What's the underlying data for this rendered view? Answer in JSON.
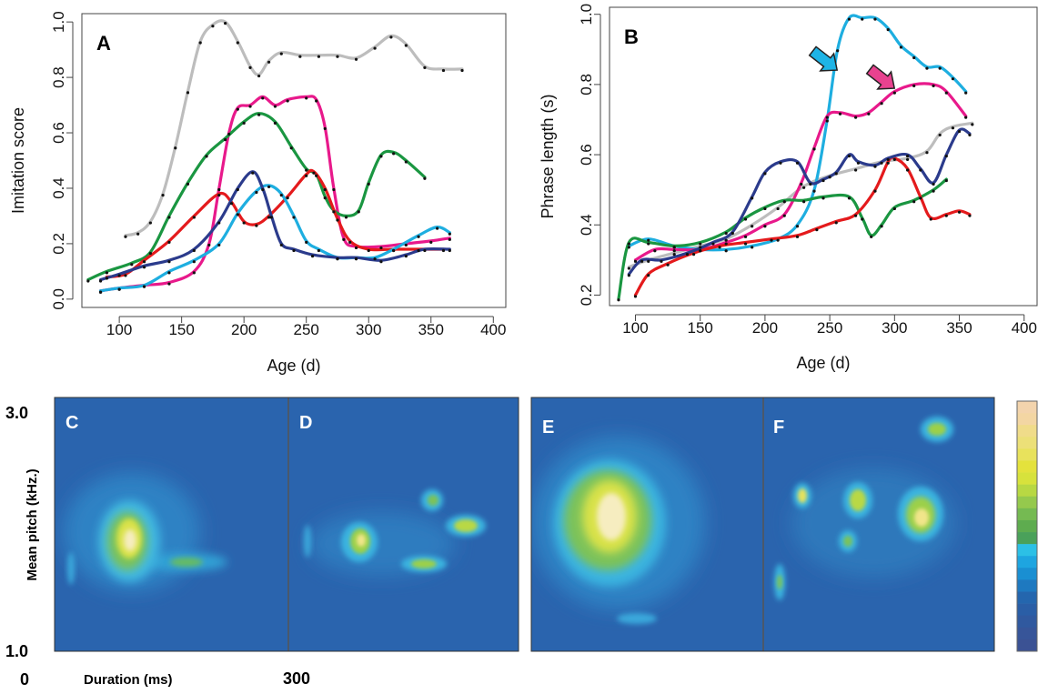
{
  "chart_data": [
    {
      "panel": "A",
      "type": "line",
      "xlabel": "Age (d)",
      "ylabel": "Imitation score",
      "xlim": [
        70,
        410
      ],
      "ylim": [
        -0.03,
        1.03
      ],
      "x_ticks": [
        100,
        150,
        200,
        250,
        300,
        350,
        400
      ],
      "y_ticks": [
        0.0,
        0.2,
        0.4,
        0.6,
        0.8,
        1.0
      ],
      "y_tick_labels": [
        "0.0",
        "0.2",
        "0.4",
        "0.6",
        "0.8",
        "1.0"
      ],
      "series": [
        {
          "color": "#bdbdbd",
          "points": [
            [
              105,
              0.23
            ],
            [
              115,
              0.24
            ],
            [
              125,
              0.28
            ],
            [
              135,
              0.38
            ],
            [
              145,
              0.55
            ],
            [
              155,
              0.75
            ],
            [
              165,
              0.93
            ],
            [
              175,
              0.99
            ],
            [
              185,
              1.0
            ],
            [
              195,
              0.93
            ],
            [
              205,
              0.84
            ],
            [
              212,
              0.81
            ],
            [
              220,
              0.86
            ],
            [
              230,
              0.89
            ],
            [
              245,
              0.88
            ],
            [
              260,
              0.88
            ],
            [
              275,
              0.88
            ],
            [
              290,
              0.87
            ],
            [
              305,
              0.91
            ],
            [
              318,
              0.95
            ],
            [
              330,
              0.92
            ],
            [
              345,
              0.84
            ],
            [
              360,
              0.83
            ],
            [
              375,
              0.83
            ]
          ]
        },
        {
          "color": "#e8198b",
          "points": [
            [
              85,
              0.03
            ],
            [
              100,
              0.04
            ],
            [
              120,
              0.05
            ],
            [
              140,
              0.06
            ],
            [
              160,
              0.1
            ],
            [
              172,
              0.2
            ],
            [
              180,
              0.4
            ],
            [
              188,
              0.6
            ],
            [
              195,
              0.69
            ],
            [
              205,
              0.7
            ],
            [
              215,
              0.73
            ],
            [
              225,
              0.7
            ],
            [
              235,
              0.72
            ],
            [
              250,
              0.73
            ],
            [
              258,
              0.72
            ],
            [
              265,
              0.62
            ],
            [
              272,
              0.4
            ],
            [
              280,
              0.22
            ],
            [
              290,
              0.19
            ],
            [
              310,
              0.19
            ],
            [
              330,
              0.2
            ],
            [
              350,
              0.21
            ],
            [
              365,
              0.22
            ]
          ]
        },
        {
          "color": "#1a9641",
          "points": [
            [
              75,
              0.07
            ],
            [
              90,
              0.1
            ],
            [
              110,
              0.13
            ],
            [
              125,
              0.17
            ],
            [
              140,
              0.3
            ],
            [
              155,
              0.42
            ],
            [
              170,
              0.52
            ],
            [
              185,
              0.58
            ],
            [
              200,
              0.64
            ],
            [
              212,
              0.67
            ],
            [
              225,
              0.64
            ],
            [
              238,
              0.55
            ],
            [
              250,
              0.47
            ],
            [
              258,
              0.45
            ],
            [
              265,
              0.37
            ],
            [
              272,
              0.32
            ],
            [
              282,
              0.3
            ],
            [
              292,
              0.32
            ],
            [
              300,
              0.42
            ],
            [
              310,
              0.52
            ],
            [
              320,
              0.53
            ],
            [
              330,
              0.5
            ],
            [
              345,
              0.44
            ]
          ]
        },
        {
          "color": "#e41a1c",
          "points": [
            [
              90,
              0.08
            ],
            [
              105,
              0.09
            ],
            [
              120,
              0.14
            ],
            [
              140,
              0.21
            ],
            [
              160,
              0.3
            ],
            [
              180,
              0.38
            ],
            [
              190,
              0.35
            ],
            [
              200,
              0.28
            ],
            [
              210,
              0.27
            ],
            [
              220,
              0.3
            ],
            [
              235,
              0.37
            ],
            [
              250,
              0.45
            ],
            [
              256,
              0.46
            ],
            [
              265,
              0.4
            ],
            [
              275,
              0.29
            ],
            [
              285,
              0.21
            ],
            [
              300,
              0.18
            ],
            [
              320,
              0.18
            ],
            [
              340,
              0.18
            ],
            [
              360,
              0.18
            ]
          ]
        },
        {
          "color": "#1eaee0",
          "points": [
            [
              85,
              0.03
            ],
            [
              100,
              0.04
            ],
            [
              120,
              0.05
            ],
            [
              140,
              0.1
            ],
            [
              160,
              0.14
            ],
            [
              180,
              0.2
            ],
            [
              195,
              0.31
            ],
            [
              210,
              0.39
            ],
            [
              220,
              0.41
            ],
            [
              230,
              0.38
            ],
            [
              240,
              0.3
            ],
            [
              250,
              0.21
            ],
            [
              260,
              0.18
            ],
            [
              275,
              0.15
            ],
            [
              290,
              0.15
            ],
            [
              305,
              0.15
            ],
            [
              320,
              0.18
            ],
            [
              340,
              0.23
            ],
            [
              355,
              0.26
            ],
            [
              365,
              0.24
            ]
          ]
        },
        {
          "color": "#2b3b8c",
          "points": [
            [
              85,
              0.07
            ],
            [
              100,
              0.09
            ],
            [
              120,
              0.12
            ],
            [
              140,
              0.14
            ],
            [
              160,
              0.18
            ],
            [
              180,
              0.28
            ],
            [
              195,
              0.4
            ],
            [
              207,
              0.46
            ],
            [
              215,
              0.4
            ],
            [
              222,
              0.3
            ],
            [
              230,
              0.2
            ],
            [
              240,
              0.18
            ],
            [
              255,
              0.16
            ],
            [
              275,
              0.15
            ],
            [
              290,
              0.15
            ],
            [
              310,
              0.14
            ],
            [
              330,
              0.16
            ],
            [
              345,
              0.18
            ],
            [
              365,
              0.18
            ]
          ]
        }
      ]
    },
    {
      "panel": "B",
      "type": "line",
      "xlabel": "Age (d)",
      "ylabel": "Phrase length (s)",
      "xlim": [
        80,
        410
      ],
      "ylim": [
        0.17,
        1.02
      ],
      "x_ticks": [
        100,
        150,
        200,
        250,
        300,
        350,
        400
      ],
      "y_ticks": [
        0.2,
        0.4,
        0.6,
        0.8,
        1.0
      ],
      "y_tick_labels": [
        "0.2",
        "0.4",
        "0.6",
        "0.8",
        "1.0"
      ],
      "series": [
        {
          "color": "#bdbdbd",
          "points": [
            [
              95,
              0.28
            ],
            [
              110,
              0.3
            ],
            [
              130,
              0.32
            ],
            [
              150,
              0.34
            ],
            [
              170,
              0.36
            ],
            [
              190,
              0.4
            ],
            [
              210,
              0.45
            ],
            [
              230,
              0.51
            ],
            [
              250,
              0.54
            ],
            [
              270,
              0.56
            ],
            [
              290,
              0.58
            ],
            [
              310,
              0.59
            ],
            [
              325,
              0.61
            ],
            [
              335,
              0.66
            ],
            [
              345,
              0.68
            ],
            [
              360,
              0.69
            ]
          ]
        },
        {
          "color": "#1eaee0",
          "points": [
            [
              95,
              0.34
            ],
            [
              110,
              0.36
            ],
            [
              130,
              0.34
            ],
            [
              150,
              0.33
            ],
            [
              170,
              0.33
            ],
            [
              190,
              0.34
            ],
            [
              210,
              0.36
            ],
            [
              225,
              0.4
            ],
            [
              238,
              0.5
            ],
            [
              248,
              0.7
            ],
            [
              256,
              0.9
            ],
            [
              265,
              0.99
            ],
            [
              275,
              0.99
            ],
            [
              285,
              0.99
            ],
            [
              295,
              0.96
            ],
            [
              305,
              0.91
            ],
            [
              315,
              0.88
            ],
            [
              325,
              0.85
            ],
            [
              335,
              0.85
            ],
            [
              345,
              0.82
            ],
            [
              355,
              0.78
            ]
          ]
        },
        {
          "color": "#e8198b",
          "points": [
            [
              100,
              0.3
            ],
            [
              115,
              0.33
            ],
            [
              130,
              0.33
            ],
            [
              150,
              0.33
            ],
            [
              170,
              0.35
            ],
            [
              185,
              0.37
            ],
            [
              200,
              0.4
            ],
            [
              215,
              0.43
            ],
            [
              228,
              0.52
            ],
            [
              238,
              0.62
            ],
            [
              248,
              0.71
            ],
            [
              258,
              0.72
            ],
            [
              270,
              0.71
            ],
            [
              280,
              0.72
            ],
            [
              290,
              0.75
            ],
            [
              300,
              0.78
            ],
            [
              315,
              0.8
            ],
            [
              330,
              0.8
            ],
            [
              340,
              0.78
            ],
            [
              355,
              0.71
            ]
          ]
        },
        {
          "color": "#1a9641",
          "points": [
            [
              87,
              0.19
            ],
            [
              95,
              0.35
            ],
            [
              110,
              0.35
            ],
            [
              130,
              0.34
            ],
            [
              150,
              0.35
            ],
            [
              170,
              0.38
            ],
            [
              185,
              0.42
            ],
            [
              200,
              0.45
            ],
            [
              215,
              0.47
            ],
            [
              230,
              0.47
            ],
            [
              245,
              0.48
            ],
            [
              265,
              0.48
            ],
            [
              275,
              0.42
            ],
            [
              282,
              0.37
            ],
            [
              290,
              0.4
            ],
            [
              300,
              0.45
            ],
            [
              315,
              0.47
            ],
            [
              330,
              0.5
            ],
            [
              340,
              0.53
            ]
          ]
        },
        {
          "color": "#e41a1c",
          "points": [
            [
              100,
              0.2
            ],
            [
              110,
              0.26
            ],
            [
              125,
              0.29
            ],
            [
              145,
              0.32
            ],
            [
              165,
              0.34
            ],
            [
              185,
              0.35
            ],
            [
              205,
              0.36
            ],
            [
              225,
              0.37
            ],
            [
              240,
              0.39
            ],
            [
              255,
              0.41
            ],
            [
              270,
              0.43
            ],
            [
              285,
              0.5
            ],
            [
              295,
              0.58
            ],
            [
              300,
              0.59
            ],
            [
              310,
              0.56
            ],
            [
              320,
              0.48
            ],
            [
              328,
              0.42
            ],
            [
              340,
              0.43
            ],
            [
              350,
              0.44
            ],
            [
              358,
              0.43
            ]
          ]
        },
        {
          "color": "#2b3b8c",
          "points": [
            [
              95,
              0.26
            ],
            [
              105,
              0.3
            ],
            [
              120,
              0.3
            ],
            [
              140,
              0.32
            ],
            [
              160,
              0.35
            ],
            [
              175,
              0.38
            ],
            [
              190,
              0.48
            ],
            [
              200,
              0.55
            ],
            [
              212,
              0.58
            ],
            [
              225,
              0.58
            ],
            [
              235,
              0.52
            ],
            [
              245,
              0.53
            ],
            [
              255,
              0.55
            ],
            [
              265,
              0.6
            ],
            [
              272,
              0.58
            ],
            [
              285,
              0.57
            ],
            [
              295,
              0.59
            ],
            [
              310,
              0.6
            ],
            [
              320,
              0.56
            ],
            [
              330,
              0.52
            ],
            [
              340,
              0.6
            ],
            [
              350,
              0.67
            ],
            [
              358,
              0.66
            ]
          ]
        }
      ]
    }
  ],
  "panels": {
    "a_label": "A",
    "b_label": "B",
    "c_label": "C",
    "d_label": "D",
    "e_label": "E",
    "f_label": "F"
  },
  "spectrograms": {
    "ylabel": "Mean pitch (kHz.)",
    "y_top": "3.0",
    "y_bottom": "1.0",
    "x_start": "0",
    "x_label": "Duration (ms)",
    "x_end": "300",
    "background_color": "#2a64ae"
  },
  "colorbar": {
    "colors": [
      "#f3d4ad",
      "#f3d6a3",
      "#f0dc8a",
      "#ece078",
      "#e8e25c",
      "#e4e23c",
      "#d7e23c",
      "#b8d843",
      "#95c94d",
      "#75ba52",
      "#5eac4f",
      "#4aa15a",
      "#2cc0e6",
      "#1ea5e0",
      "#1a8fd2",
      "#1e79c0",
      "#2466ae",
      "#2a5ea6",
      "#30599f",
      "#375599",
      "#3b5294"
    ]
  }
}
